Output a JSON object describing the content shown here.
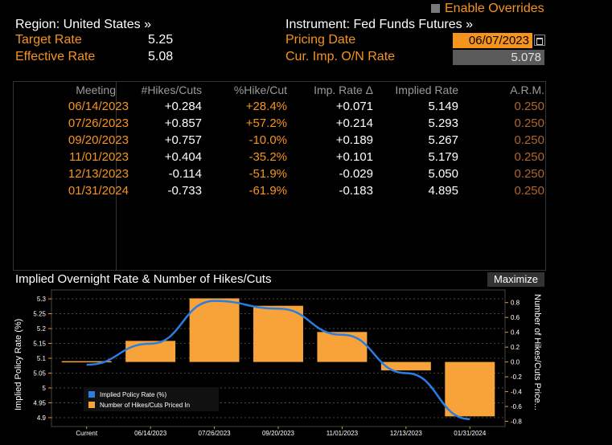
{
  "header": {
    "enable_overrides_label": "Enable Overrides",
    "region_label": "Region: United States »",
    "instrument_label": "Instrument: Fed Funds Futures »",
    "target_rate_label": "Target Rate",
    "target_rate_value": "5.25",
    "effective_rate_label": "Effective Rate",
    "effective_rate_value": "5.08",
    "pricing_date_label": "Pricing Date",
    "pricing_date_value": "06/07/2023",
    "cur_imp_label": "Cur. Imp. O/N Rate",
    "cur_imp_value": "5.078"
  },
  "table": {
    "columns": [
      "Meeting",
      "#Hikes/Cuts",
      "%Hike/Cut",
      "Imp. Rate Δ",
      "Implied Rate",
      "A.R.M."
    ],
    "rows": [
      {
        "meeting": "06/14/2023",
        "hikes": "+0.284",
        "pct": "+28.4%",
        "delta": "+0.071",
        "rate": "5.149",
        "arm": "0.250"
      },
      {
        "meeting": "07/26/2023",
        "hikes": "+0.857",
        "pct": "+57.2%",
        "delta": "+0.214",
        "rate": "5.293",
        "arm": "0.250"
      },
      {
        "meeting": "09/20/2023",
        "hikes": "+0.757",
        "pct": "-10.0%",
        "delta": "+0.189",
        "rate": "5.267",
        "arm": "0.250"
      },
      {
        "meeting": "11/01/2023",
        "hikes": "+0.404",
        "pct": "-35.2%",
        "delta": "+0.101",
        "rate": "5.179",
        "arm": "0.250"
      },
      {
        "meeting": "12/13/2023",
        "hikes": "-0.114",
        "pct": "-51.9%",
        "delta": "-0.029",
        "rate": "5.050",
        "arm": "0.250"
      },
      {
        "meeting": "01/31/2024",
        "hikes": "-0.733",
        "pct": "-61.9%",
        "delta": "-0.183",
        "rate": "4.895",
        "arm": "0.250"
      }
    ]
  },
  "chart_title": "Implied Overnight Rate & Number of Hikes/Cuts",
  "maximize_label": "Maximize",
  "colors": {
    "bar": "#f7a33a",
    "line": "#2a7de1",
    "orange": "#f7941d"
  },
  "chart_data": {
    "type": "bar",
    "categories": [
      "Current",
      "06/14/2023",
      "07/26/2023",
      "09/20/2023",
      "11/01/2023",
      "12/13/2023",
      "01/31/2024"
    ],
    "series": [
      {
        "name": "Implied Policy Rate (%)",
        "type": "line",
        "axis": "left",
        "values": [
          5.078,
          5.149,
          5.293,
          5.267,
          5.179,
          5.05,
          4.895
        ]
      },
      {
        "name": "Number of Hikes/Cuts Priced In",
        "type": "bar",
        "axis": "right",
        "values": [
          0,
          0.284,
          0.857,
          0.757,
          0.404,
          -0.114,
          -0.733
        ]
      }
    ],
    "ylabel": "Implied Policy Rate (%)",
    "y2label": "Number of Hikes/Cuts Price...",
    "ylim": [
      4.87,
      5.33
    ],
    "y2lim": [
      -0.87,
      0.97
    ],
    "yticks": [
      "5.3",
      "5.25",
      "5.2",
      "5.15",
      "5.1",
      "5.05",
      "5",
      "4.95",
      "4.9"
    ],
    "y2ticks": [
      "0.8",
      "0.6",
      "0.4",
      "0.2",
      "0.0",
      "-0.2",
      "-0.4",
      "-0.6",
      "-0.8"
    ],
    "grid": true,
    "legend": "bottom-left"
  }
}
